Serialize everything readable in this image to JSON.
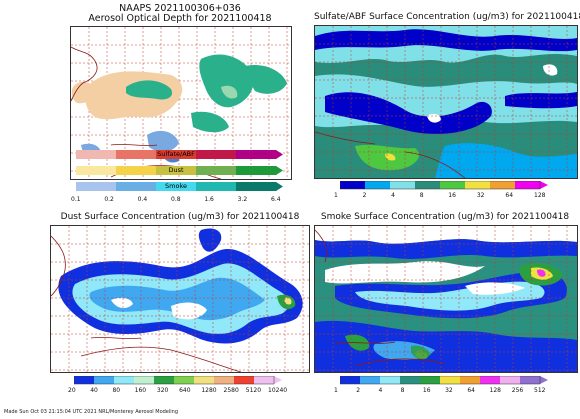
{
  "colors": {
    "grid": "#c0392b",
    "sulfate_bar": [
      "#f0b8b0",
      "#e87468",
      "#d83c30",
      "#c01848",
      "#b00088"
    ],
    "dust_bar": [
      "#fae8a0",
      "#f4d24a",
      "#c8c040",
      "#70b050",
      "#1f9a3a"
    ],
    "smoke_bar": [
      "#a8c4ec",
      "#6aaee6",
      "#46d8ee",
      "#20b8b0",
      "#0a7a6a"
    ],
    "conc_scale": [
      "#0000c8",
      "#00a8f0",
      "#80e0e8",
      "#2a8c7a",
      "#4ec840",
      "#f0e040",
      "#f0a030",
      "#f02020",
      "#f000f0"
    ],
    "dust_scale": [
      "#1030e0",
      "#40a8f0",
      "#90e8f8",
      "#c0f0d0",
      "#2aa040",
      "#80d050",
      "#f0e080",
      "#f0b080",
      "#f04030",
      "#f0c0f0"
    ],
    "smoke_scale": [
      "#1030e0",
      "#40a8f0",
      "#90e8f8",
      "#2a9080",
      "#2aa040",
      "#f0e040",
      "#f0a030",
      "#f030f0",
      "#f0b0f0",
      "#9070d0"
    ]
  },
  "panels": [
    {
      "title_line1": "NAAPS 2021100306+036",
      "title_line2": "Aerosol Optical Depth for 2021100418",
      "legend": {
        "bars": [
          "Sulfate/ABF",
          "Dust",
          "Smoke"
        ],
        "ticks": [
          "0.1",
          "0.2",
          "0.4",
          "0.8",
          "1.6",
          "3.2",
          "6.4"
        ]
      }
    },
    {
      "title": "Sulfate/ABF Surface Concentration (ug/m3) for 2021100418",
      "ticks": [
        "1",
        "2",
        "4",
        "8",
        "16",
        "32",
        "64",
        "128"
      ]
    },
    {
      "title": "Dust Surface Concentration (ug/m3) for 2021100418",
      "ticks": [
        "20",
        "40",
        "80",
        "160",
        "320",
        "640",
        "1280",
        "2580",
        "5120",
        "10240"
      ]
    },
    {
      "title": "Smoke Surface Concentration (ug/m3) for 2021100418",
      "ticks": [
        "1",
        "2",
        "4",
        "8",
        "16",
        "32",
        "64",
        "128",
        "256",
        "512"
      ]
    }
  ],
  "footer": "Made Sun Oct 03 21:15:04 UTC 2021 NRL/Monterey Aerosol Modeling",
  "chart_data": [
    {
      "type": "heatmap",
      "title": "Aerosol Optical Depth for 2021100418",
      "series": [
        {
          "name": "Sulfate/ABF"
        },
        {
          "name": "Dust"
        },
        {
          "name": "Smoke"
        }
      ],
      "colorbar_ticks": [
        0.1,
        0.2,
        0.4,
        0.8,
        1.6,
        3.2,
        6.4
      ]
    },
    {
      "type": "heatmap",
      "title": "Sulfate/ABF Surface Concentration (ug/m3) for 2021100418",
      "colorbar_ticks": [
        1,
        2,
        4,
        8,
        16,
        32,
        64,
        128
      ]
    },
    {
      "type": "heatmap",
      "title": "Dust Surface Concentration (ug/m3) for 2021100418",
      "colorbar_ticks": [
        20,
        40,
        80,
        160,
        320,
        640,
        1280,
        2580,
        5120,
        10240
      ]
    },
    {
      "type": "heatmap",
      "title": "Smoke Surface Concentration (ug/m3) for 2021100418",
      "colorbar_ticks": [
        1,
        2,
        4,
        8,
        16,
        32,
        64,
        128,
        256,
        512
      ]
    }
  ]
}
